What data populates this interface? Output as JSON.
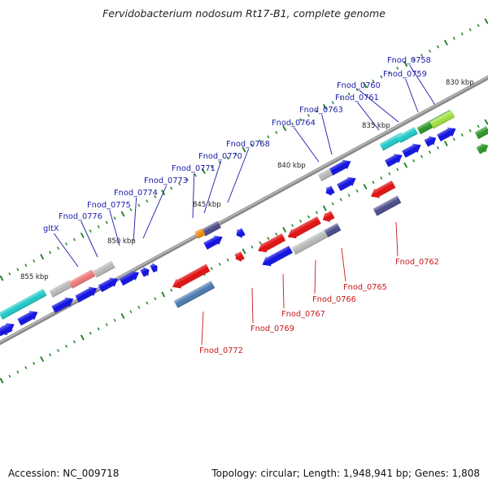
{
  "title": "Fervidobacterium nodosum Rt17-B1, complete genome",
  "footer": {
    "accession": "Accession: NC_009718",
    "summary": "Topology: circular; Length: 1,948,941 bp; Genes: 1,808"
  },
  "colors": {
    "backbone": "#8a8a8a",
    "tick": "#1a7a1a",
    "label_top": "#1a1aa8",
    "label_bottom": "#c81818",
    "bp_label": "#222222",
    "blue": "#1010e0",
    "red": "#e01010",
    "cyan": "#20c8c8",
    "grey": "#b8b8b8",
    "pink": "#ee7777",
    "navy": "#4a4a8a",
    "steel": "#4a7ab0",
    "green": "#2a962a",
    "lime": "#a0e040",
    "orange": "#f08c10"
  },
  "bp_labels": [
    {
      "text": "830 kbp"
    },
    {
      "text": "835 kbp"
    },
    {
      "text": "840 kbp"
    },
    {
      "text": "845 kbp"
    },
    {
      "text": "850 kbp"
    },
    {
      "text": "855 kbp"
    }
  ],
  "gene_labels_top": [
    {
      "text": "Fnod_0758"
    },
    {
      "text": "Fnod_0759"
    },
    {
      "text": "Fnod_0760"
    },
    {
      "text": "Fnod_0761"
    },
    {
      "text": "Fnod_0763"
    },
    {
      "text": "Fnod_0764"
    },
    {
      "text": "Fnod_0768"
    },
    {
      "text": "Fnod_0770"
    },
    {
      "text": "Fnod_0771"
    },
    {
      "text": "Fnod_0773"
    },
    {
      "text": "Fnod_0774"
    },
    {
      "text": "Fnod_0775"
    },
    {
      "text": "Fnod_0776"
    },
    {
      "text": "gltX"
    }
  ],
  "gene_labels_bottom": [
    {
      "text": "Fnod_0762"
    },
    {
      "text": "Fnod_0765"
    },
    {
      "text": "Fnod_0766"
    },
    {
      "text": "Fnod_0767"
    },
    {
      "text": "Fnod_0769"
    },
    {
      "text": "Fnod_0772"
    }
  ],
  "icons": {
    "forward_gene": "right-pointing-arrow-block",
    "reverse_gene": "left-pointing-arrow-block"
  }
}
